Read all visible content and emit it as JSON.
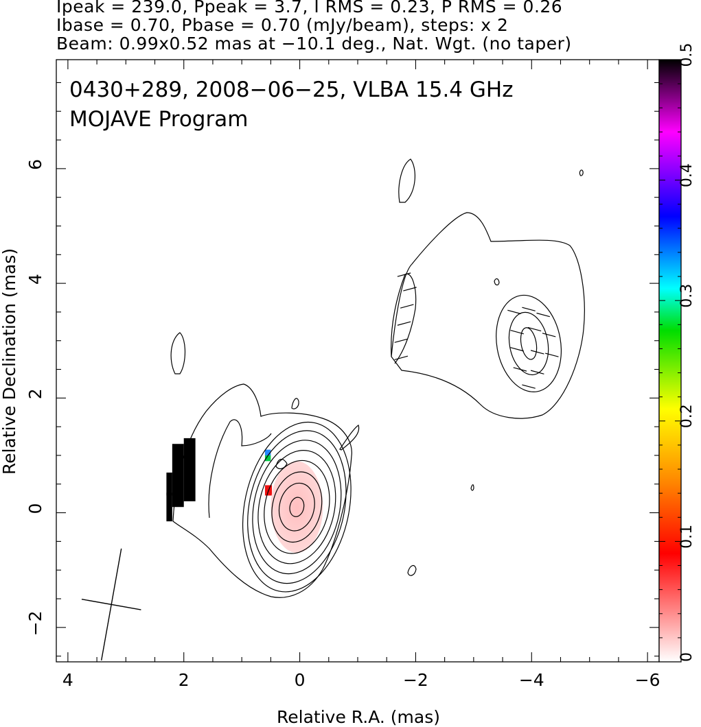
{
  "header": {
    "line1": "Ipeak = 239.0, Ppeak = 3.7, I RMS = 0.23, P RMS = 0.26",
    "line2": "Ibase = 0.70, Pbase = 0.70 (mJy/beam), steps: x 2",
    "line3": "Beam: 0.99x0.52 mas at −10.1 deg., Nat. Wgt. (no taper)"
  },
  "chart_data": {
    "type": "heatmap",
    "title": "0430+289, 2008−06−25, VLBA 15.4 GHz",
    "subtitle": "MOJAVE Program",
    "xlabel": "Relative R.A. (mas)",
    "ylabel": "Relative Declination (mas)",
    "xlim": [
      4.2,
      -6.2
    ],
    "ylim": [
      -2.6,
      7.9
    ],
    "x_ticks": [
      4,
      2,
      0,
      -2,
      -4,
      -6
    ],
    "x_tick_labels": [
      "4",
      "2",
      "0",
      "−2",
      "−4",
      "−6"
    ],
    "y_ticks": [
      -2,
      0,
      2,
      4,
      6
    ],
    "y_tick_labels": [
      "−2",
      "0",
      "2",
      "4",
      "6"
    ],
    "colorbar": {
      "range": [
        0,
        0.5
      ],
      "ticks": [
        0,
        0.1,
        0.2,
        0.3,
        0.4,
        0.5
      ],
      "tick_labels": [
        "0",
        "0.1",
        "0.2",
        "0.3",
        "0.4",
        "0.5"
      ]
    },
    "beam": {
      "major_mas": 0.99,
      "minor_mas": 0.52,
      "pa_deg": -10.1,
      "center": [
        3.25,
        -1.6
      ]
    },
    "core": {
      "center": [
        0.05,
        0.1
      ],
      "contours": [
        [
          0.12,
          0.17
        ],
        [
          0.3,
          0.42
        ],
        [
          0.42,
          0.62
        ],
        [
          0.55,
          0.82
        ],
        [
          0.65,
          1.0
        ],
        [
          0.74,
          1.18
        ],
        [
          0.82,
          1.35
        ],
        [
          0.9,
          1.5
        ]
      ]
    },
    "east_component": {
      "center": [
        -3.95,
        2.95
      ],
      "contours": [
        [
          0.13,
          0.28
        ],
        [
          0.33,
          0.55
        ],
        [
          0.55,
          0.85
        ]
      ]
    },
    "polarization_vectors": [
      {
        "x": -1.9,
        "y": 3.9,
        "angle": 15
      },
      {
        "x": -1.85,
        "y": 3.6,
        "angle": 15
      },
      {
        "x": -1.8,
        "y": 3.3,
        "angle": 15
      },
      {
        "x": -1.75,
        "y": 3.0,
        "angle": 15
      },
      {
        "x": -1.75,
        "y": 2.7,
        "angle": 15
      },
      {
        "x": -1.8,
        "y": 4.15,
        "angle": 15
      },
      {
        "x": -3.7,
        "y": 3.5,
        "angle": -15
      },
      {
        "x": -3.95,
        "y": 3.55,
        "angle": -15
      },
      {
        "x": -4.2,
        "y": 3.45,
        "angle": -15
      },
      {
        "x": -3.75,
        "y": 3.15,
        "angle": -15
      },
      {
        "x": -4.05,
        "y": 3.2,
        "angle": -15
      },
      {
        "x": -4.3,
        "y": 3.1,
        "angle": -15
      },
      {
        "x": -3.75,
        "y": 2.85,
        "angle": -15
      },
      {
        "x": -4.1,
        "y": 2.8,
        "angle": -15
      },
      {
        "x": -4.35,
        "y": 2.75,
        "angle": -15
      },
      {
        "x": -3.8,
        "y": 2.5,
        "angle": -15
      },
      {
        "x": -4.1,
        "y": 2.45,
        "angle": -15
      },
      {
        "x": -3.95,
        "y": 2.2,
        "angle": -15
      }
    ],
    "fractional_pol_pixels": [
      {
        "x": 2.3,
        "y": 0.3,
        "w": 0.1,
        "h": 0.4,
        "value": 0.5
      },
      {
        "x": 2.2,
        "y": 0.1,
        "w": 0.2,
        "h": 1.1,
        "value": 0.5
      },
      {
        "x": 2.0,
        "y": 0.2,
        "w": 0.2,
        "h": 1.1,
        "value": 0.5
      },
      {
        "x": 2.3,
        "y": -0.15,
        "w": 0.1,
        "h": 0.5,
        "value": 0.5
      },
      {
        "x": 0.6,
        "y": 1.0,
        "w": 0.1,
        "h": 0.1,
        "value": 0.33
      },
      {
        "x": 0.6,
        "y": 0.9,
        "w": 0.1,
        "h": 0.1,
        "value": 0.28
      },
      {
        "x": 0.6,
        "y": 0.3,
        "w": 0.12,
        "h": 0.18,
        "value": 0.08
      },
      {
        "x": 0.05,
        "y": 0.1,
        "rx": 0.45,
        "ry": 0.8,
        "value": 0.04
      }
    ]
  }
}
